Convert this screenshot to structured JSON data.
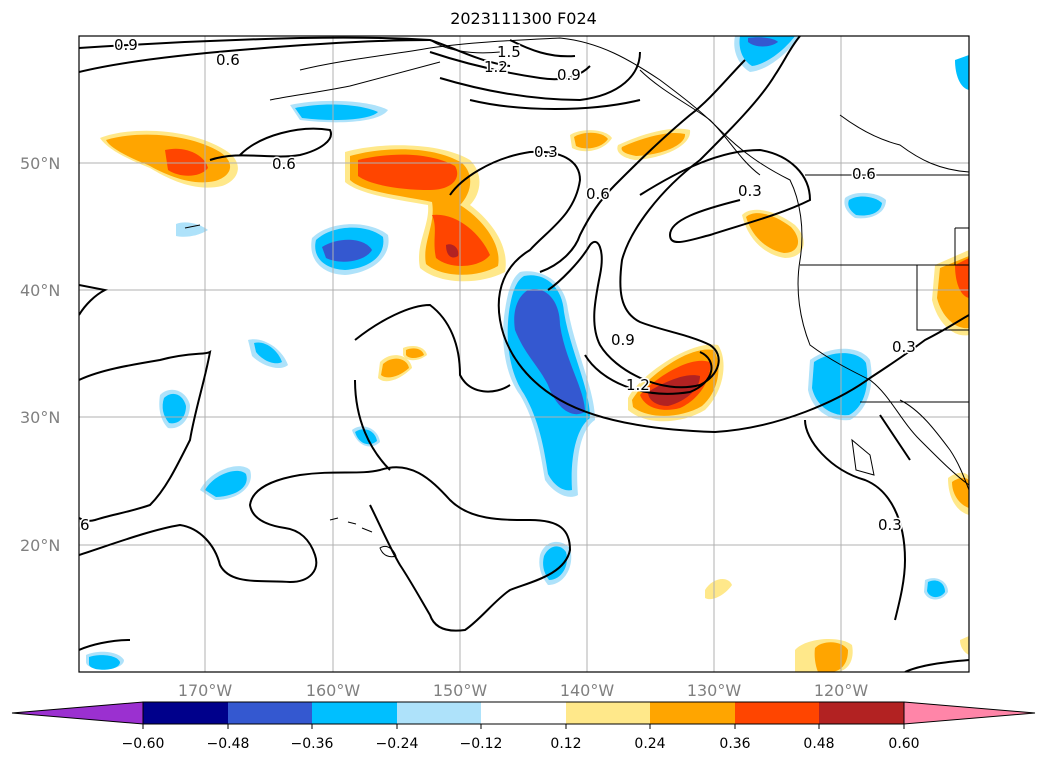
{
  "title": "2023111300 F024",
  "map": {
    "lon_ticks": [
      "170°W",
      "160°W",
      "150°W",
      "140°W",
      "130°W",
      "120°W"
    ],
    "lat_ticks": [
      "50°N",
      "40°N",
      "30°N",
      "20°N"
    ],
    "contour_labels": [
      "0.9",
      "1.5",
      "1.2",
      "0.9",
      "0.6",
      "0.6",
      "0.3",
      "0.6",
      "0.3",
      "0.6",
      "0.9",
      "1.2",
      "0.3",
      "0.3",
      "6"
    ]
  },
  "colorbar": {
    "ticks": [
      "−0.60",
      "−0.48",
      "−0.36",
      "−0.24",
      "−0.12",
      "0.12",
      "0.24",
      "0.36",
      "0.48",
      "0.60"
    ],
    "colors": [
      "#9b30d0",
      "#00008b",
      "#3458d0",
      "#00bfff",
      "#aee2fa",
      "#ffffff",
      "#ffe88a",
      "#ffa500",
      "#ff4500",
      "#b22222",
      "#ff85a8"
    ]
  },
  "colors": {
    "coast": "#000000",
    "grid": "#b0b0b0",
    "geo_label": "#808080"
  }
}
